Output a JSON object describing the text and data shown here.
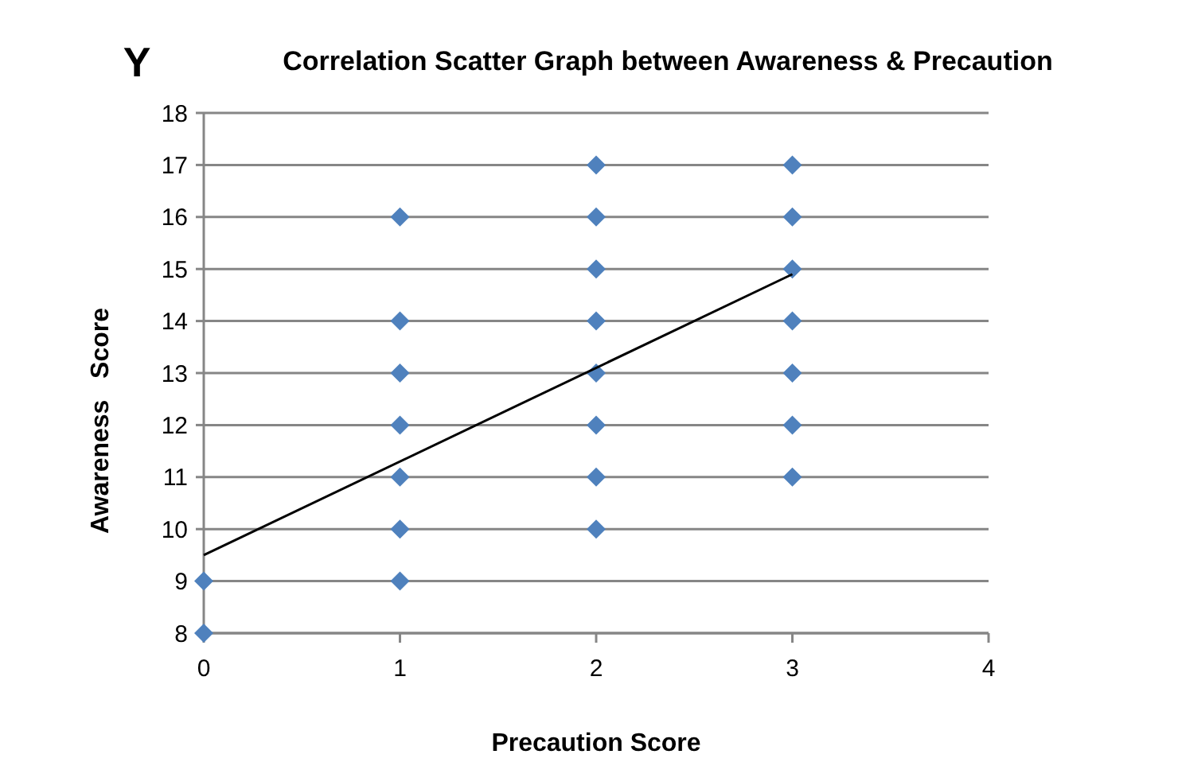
{
  "chart_data": {
    "type": "scatter",
    "title": "Correlation Scatter Graph between Awareness & Precaution",
    "xlabel": "Precaution Score",
    "ylabel": "Awareness   Score",
    "annotations": [
      "Y"
    ],
    "xlim": [
      0,
      4
    ],
    "xticks": [
      0,
      1,
      2,
      3,
      4
    ],
    "ylim": [
      8,
      18
    ],
    "yticks": [
      8,
      9,
      10,
      11,
      12,
      13,
      14,
      15,
      16,
      17,
      18
    ],
    "grid": "y",
    "marker": "diamond",
    "series": [
      {
        "color": "#4f81bd",
        "x": [
          0,
          0,
          1,
          1,
          1,
          1,
          1,
          1,
          1,
          2,
          2,
          2,
          2,
          2,
          2,
          2,
          2,
          3,
          3,
          3,
          3,
          3,
          3,
          3
        ],
        "values": [
          8,
          9,
          9,
          10,
          11,
          12,
          13,
          14,
          16,
          10,
          11,
          12,
          13,
          14,
          15,
          16,
          17,
          11,
          12,
          13,
          14,
          15,
          16,
          17
        ]
      },
      {
        "type": "line",
        "color": "#000000",
        "marker": "none",
        "line_style": "solid",
        "x": [
          0,
          3
        ],
        "values": [
          9.5,
          14.9
        ]
      }
    ]
  }
}
